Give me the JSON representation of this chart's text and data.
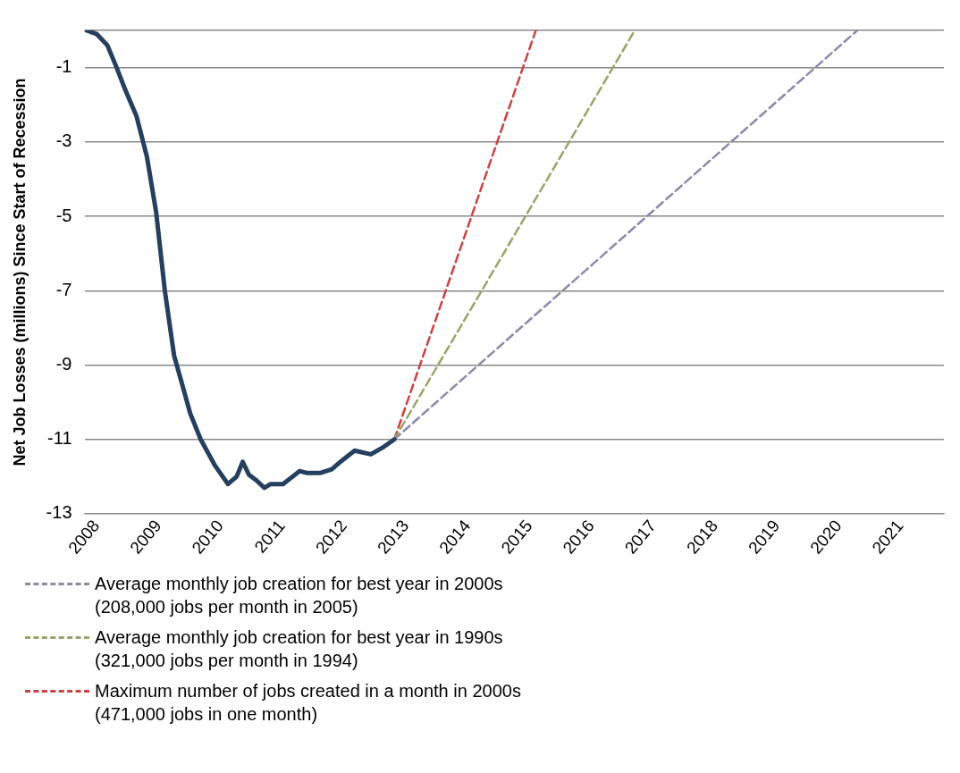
{
  "chart_data": {
    "type": "line",
    "ylabel": "Net Job Losses (millions) Since Start of Recession",
    "xlim": [
      2007.8,
      2021.7
    ],
    "xticks": [
      2008,
      2009,
      2010,
      2011,
      2012,
      2013,
      2014,
      2015,
      2016,
      2017,
      2018,
      2019,
      2020,
      2021
    ],
    "ylim": [
      -13,
      0
    ],
    "yticks": [
      {
        "value": 0,
        "label": null
      },
      -1,
      -3,
      -5,
      -7,
      -9,
      -11,
      -13
    ],
    "grid": "y",
    "legend": "bottom left",
    "marker": "none",
    "series": [
      {
        "color": "#243f60",
        "line_style": "solid",
        "x": [
          2007.83,
          2008.0,
          2008.17,
          2008.32,
          2008.46,
          2008.64,
          2008.81,
          2008.96,
          2009.1,
          2009.25,
          2009.36,
          2009.51,
          2009.68,
          2009.91,
          2010.12,
          2010.26,
          2010.36,
          2010.46,
          2010.58,
          2010.71,
          2010.81,
          2011.01,
          2011.28,
          2011.39,
          2011.62,
          2011.8,
          2011.94,
          2012.17,
          2012.43,
          2012.64,
          2012.81
        ],
        "values": [
          0,
          -0.1,
          -0.4,
          -1.0,
          -1.6,
          -2.3,
          -3.4,
          -4.9,
          -7.0,
          -8.75,
          -9.4,
          -10.3,
          -11.0,
          -11.7,
          -12.2,
          -12.0,
          -11.6,
          -11.95,
          -12.1,
          -12.3,
          -12.2,
          -12.2,
          -11.85,
          -11.9,
          -11.9,
          -11.8,
          -11.6,
          -11.3,
          -11.4,
          -11.2,
          -11.0
        ]
      },
      {
        "name": "Average monthly job creation for best year in 2000s (208,000 jobs per month in 2005)",
        "color": "#8a8aa8",
        "line_style": "dashed",
        "x": [
          2012.81,
          2020.3
        ],
        "values": [
          -11.0,
          0
        ]
      },
      {
        "name": "Average monthly job creation for best year in 1990s (321,000 jobs per month in 1994)",
        "color": "#9aa468",
        "line_style": "dashed",
        "x": [
          2012.81,
          2016.7
        ],
        "values": [
          -11.0,
          0
        ]
      },
      {
        "name": "Maximum number of jobs created in a month in 2000s (471,000 jobs in one month)",
        "color": "#d04040",
        "line_style": "dashed",
        "x": [
          2012.81,
          2015.1
        ],
        "values": [
          -11.0,
          0
        ]
      }
    ]
  }
}
